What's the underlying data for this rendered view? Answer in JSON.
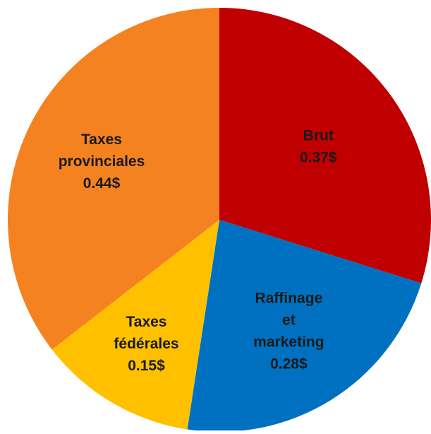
{
  "chart_data": {
    "type": "pie",
    "title": "",
    "slices": [
      {
        "label": [
          "Brut"
        ],
        "value_label": "0.37$",
        "value": 0.37,
        "color": "#C00000"
      },
      {
        "label": [
          "Raffinage",
          "et",
          "marketing"
        ],
        "value_label": "0.28$",
        "value": 0.28,
        "color": "#0070C0"
      },
      {
        "label": [
          "Taxes",
          "fédérales"
        ],
        "value_label": "0.15$",
        "value": 0.15,
        "color": "#FFC000"
      },
      {
        "label": [
          "Taxes",
          "provinciales"
        ],
        "value_label": "0.44$",
        "value": 0.44,
        "color": "#F58220"
      }
    ],
    "start_angle_deg": 0,
    "direction": "clockwise",
    "legend": "none",
    "data_labels": "inside"
  }
}
